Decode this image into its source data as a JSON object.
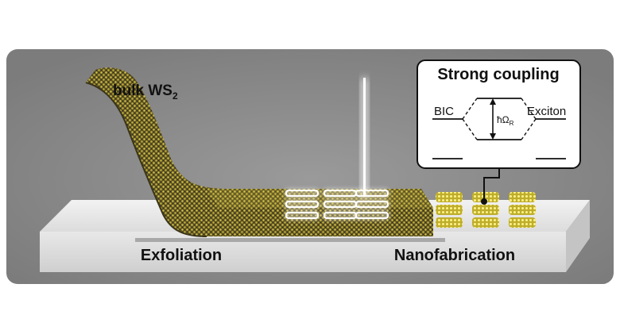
{
  "labels": {
    "bulk_prefix": "bulk WS",
    "bulk_subscript": "2",
    "exfoliation": "Exfoliation",
    "nanofabrication": "Nanofabrication"
  },
  "inset": {
    "title": "Strong coupling",
    "left_label": "BIC",
    "right_label": "Exciton",
    "rabi_symbol": "ħΩ",
    "rabi_subscript": "R"
  },
  "colors": {
    "background": "#8f8f8f",
    "substrate": "#e6e6e6",
    "ws2_flake": "#8a7a2a",
    "ws2_highlight": "#d8c64a",
    "nanopillar": "#e8d84a",
    "laser": "#ffffff",
    "inset_bg": "#ffffff"
  }
}
